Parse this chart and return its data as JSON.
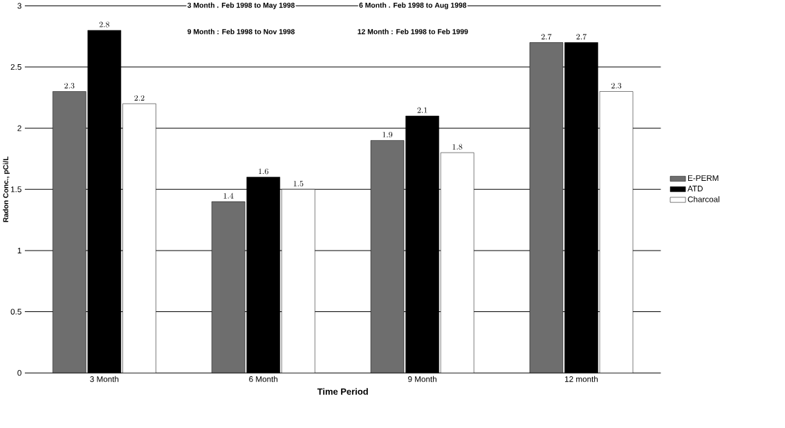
{
  "chart_data": {
    "type": "bar",
    "xlabel": "Time Period",
    "ylabel": "Radon Conc., pCi/L",
    "categories": [
      "3 Month",
      "6 Month",
      "9 Month",
      "12 month"
    ],
    "series": [
      {
        "name": "E-PERM",
        "color": "#6e6e6e",
        "values": [
          2.3,
          1.4,
          1.9,
          2.7
        ]
      },
      {
        "name": "ATD",
        "color": "#000000",
        "values": [
          2.8,
          1.6,
          2.1,
          2.7
        ]
      },
      {
        "name": "Charcoal",
        "color": "#ffffff",
        "values": [
          2.2,
          1.5,
          1.8,
          2.3
        ]
      }
    ],
    "ylim": [
      0,
      3
    ],
    "yticks": [
      0,
      0.5,
      1,
      1.5,
      2,
      2.5,
      3
    ],
    "grid": "y",
    "legend": "right",
    "data_labels": true,
    "annotations": [
      "3 Month . Feb 1998 to May 1998",
      "6 Month . Feb 1998 to Aug 1998",
      "9 Month : Feb 1998 to Nov 1998",
      "12 Month : Feb 1998 to Feb 1999"
    ]
  }
}
